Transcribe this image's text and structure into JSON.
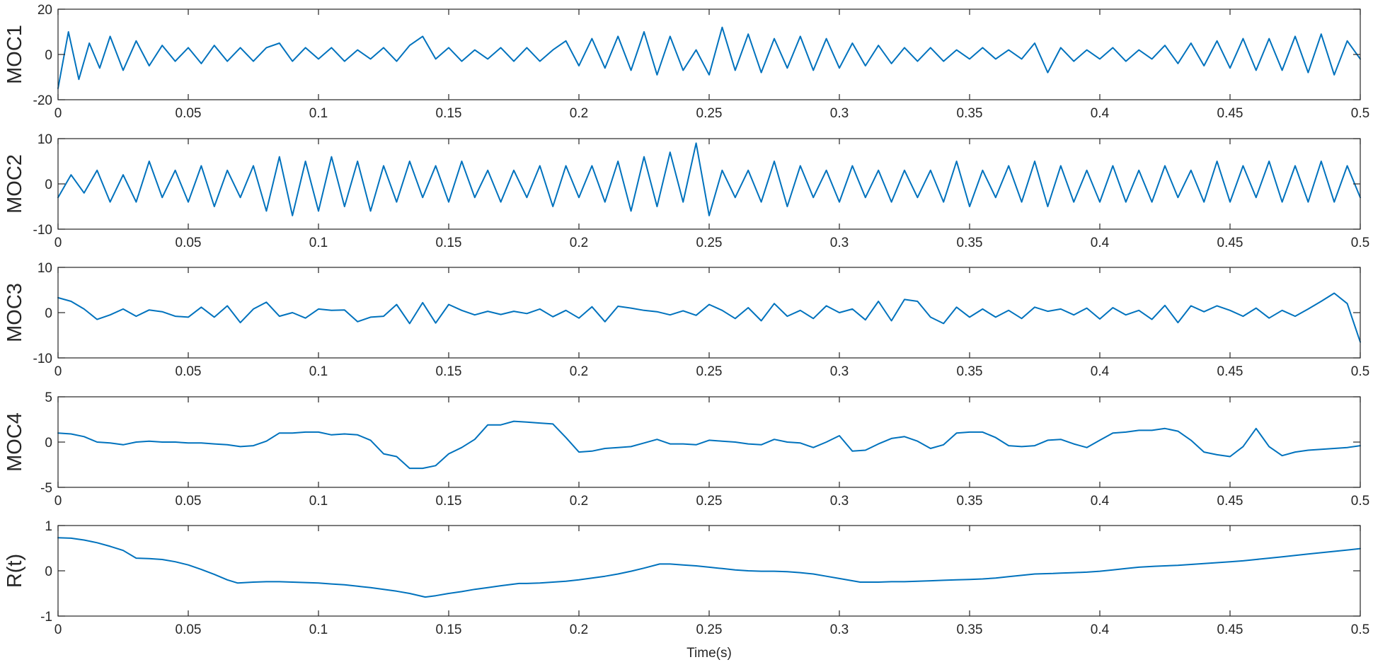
{
  "colors": {
    "line": "#0072BD",
    "axis": "#262626",
    "background": "#ffffff"
  },
  "chart_data": [
    {
      "type": "line",
      "ylabel": "MOC1",
      "xlabel": "",
      "xlim": [
        0,
        0.5
      ],
      "ylim": [
        -20,
        20
      ],
      "xticks": [
        "0",
        "0.05",
        "0.1",
        "0.15",
        "0.2",
        "0.25",
        "0.3",
        "0.35",
        "0.4",
        "0.45",
        "0.5"
      ],
      "yticks": [
        "20",
        "0",
        "-20"
      ],
      "grid": false,
      "x": [
        0,
        0.004,
        0.008,
        0.012,
        0.016,
        0.02,
        0.025,
        0.03,
        0.035,
        0.04,
        0.045,
        0.05,
        0.055,
        0.06,
        0.065,
        0.07,
        0.075,
        0.08,
        0.085,
        0.09,
        0.095,
        0.1,
        0.105,
        0.11,
        0.115,
        0.12,
        0.125,
        0.13,
        0.135,
        0.14,
        0.145,
        0.15,
        0.155,
        0.16,
        0.165,
        0.17,
        0.175,
        0.18,
        0.185,
        0.19,
        0.195,
        0.2,
        0.205,
        0.21,
        0.215,
        0.22,
        0.225,
        0.23,
        0.235,
        0.24,
        0.245,
        0.25,
        0.255,
        0.26,
        0.265,
        0.27,
        0.275,
        0.28,
        0.285,
        0.29,
        0.295,
        0.3,
        0.305,
        0.31,
        0.315,
        0.32,
        0.325,
        0.33,
        0.335,
        0.34,
        0.345,
        0.35,
        0.355,
        0.36,
        0.365,
        0.37,
        0.375,
        0.38,
        0.385,
        0.39,
        0.395,
        0.4,
        0.405,
        0.41,
        0.415,
        0.42,
        0.425,
        0.43,
        0.435,
        0.44,
        0.445,
        0.45,
        0.455,
        0.46,
        0.465,
        0.47,
        0.475,
        0.48,
        0.485,
        0.49,
        0.495,
        0.5
      ],
      "series": [
        {
          "values": [
            -15,
            10,
            -11,
            5,
            -6,
            8,
            -7,
            6,
            -5,
            4,
            -3,
            3,
            -4,
            4,
            -3,
            3,
            -3,
            3,
            5,
            -3,
            3,
            -2,
            3,
            -3,
            2,
            -2,
            3,
            -3,
            4,
            8,
            -2,
            3,
            -3,
            2,
            -2,
            3,
            -3,
            3,
            -3,
            2,
            6,
            -5,
            7,
            -6,
            8,
            -7,
            10,
            -9,
            8,
            -7,
            2,
            -9,
            12,
            -7,
            9,
            -8,
            7,
            -6,
            8,
            -7,
            7,
            -6,
            5,
            -5,
            4,
            -4,
            3,
            -3,
            3,
            -3,
            2,
            -2,
            3,
            -2,
            2,
            -2,
            5,
            -8,
            3,
            -3,
            2,
            -2,
            3,
            -3,
            2,
            -2,
            4,
            -4,
            5,
            -5,
            6,
            -6,
            7,
            -7,
            7,
            -7,
            8,
            -8,
            9,
            -9,
            6,
            -2
          ]
        }
      ]
    },
    {
      "type": "line",
      "ylabel": "MOC2",
      "xlabel": "",
      "xlim": [
        0,
        0.5
      ],
      "ylim": [
        -10,
        10
      ],
      "xticks": [
        "0",
        "0.05",
        "0.1",
        "0.15",
        "0.2",
        "0.25",
        "0.3",
        "0.35",
        "0.4",
        "0.45",
        "0.5"
      ],
      "yticks": [
        "10",
        "0",
        "-10"
      ],
      "grid": false,
      "x": [
        0,
        0.005,
        0.01,
        0.015,
        0.02,
        0.025,
        0.03,
        0.035,
        0.04,
        0.045,
        0.05,
        0.055,
        0.06,
        0.065,
        0.07,
        0.075,
        0.08,
        0.085,
        0.09,
        0.095,
        0.1,
        0.105,
        0.11,
        0.115,
        0.12,
        0.125,
        0.13,
        0.135,
        0.14,
        0.145,
        0.15,
        0.155,
        0.16,
        0.165,
        0.17,
        0.175,
        0.18,
        0.185,
        0.19,
        0.195,
        0.2,
        0.205,
        0.21,
        0.215,
        0.22,
        0.225,
        0.23,
        0.235,
        0.24,
        0.245,
        0.25,
        0.255,
        0.26,
        0.265,
        0.27,
        0.275,
        0.28,
        0.285,
        0.29,
        0.295,
        0.3,
        0.305,
        0.31,
        0.315,
        0.32,
        0.325,
        0.33,
        0.335,
        0.34,
        0.345,
        0.35,
        0.355,
        0.36,
        0.365,
        0.37,
        0.375,
        0.38,
        0.385,
        0.39,
        0.395,
        0.4,
        0.405,
        0.41,
        0.415,
        0.42,
        0.425,
        0.43,
        0.435,
        0.44,
        0.445,
        0.45,
        0.455,
        0.46,
        0.465,
        0.47,
        0.475,
        0.48,
        0.485,
        0.49,
        0.495,
        0.5
      ],
      "series": [
        {
          "values": [
            -3,
            2,
            -2,
            3,
            -4,
            2,
            -4,
            5,
            -3,
            3,
            -4,
            4,
            -5,
            3,
            -3,
            4,
            -6,
            6,
            -7,
            5,
            -6,
            6,
            -5,
            5,
            -6,
            4,
            -4,
            5,
            -3,
            4,
            -4,
            5,
            -3,
            3,
            -4,
            3,
            -3,
            4,
            -5,
            4,
            -3,
            4,
            -4,
            5,
            -6,
            6,
            -5,
            7,
            -4,
            9,
            -7,
            3,
            -3,
            3,
            -4,
            5,
            -5,
            4,
            -3,
            3,
            -4,
            4,
            -3,
            3,
            -4,
            3,
            -3,
            3,
            -4,
            5,
            -5,
            3,
            -3,
            4,
            -4,
            5,
            -5,
            4,
            -4,
            3,
            -4,
            4,
            -4,
            3,
            -4,
            4,
            -3,
            3,
            -4,
            5,
            -4,
            4,
            -3,
            5,
            -4,
            4,
            -4,
            5,
            -4,
            4,
            -3
          ]
        }
      ]
    },
    {
      "type": "line",
      "ylabel": "MOC3",
      "xlabel": "",
      "xlim": [
        0,
        0.5
      ],
      "ylim": [
        -10,
        10
      ],
      "xticks": [
        "0",
        "0.05",
        "0.1",
        "0.15",
        "0.2",
        "0.25",
        "0.3",
        "0.35",
        "0.4",
        "0.45",
        "0.5"
      ],
      "yticks": [
        "10",
        "0",
        "-10"
      ],
      "grid": false,
      "x": [
        0,
        0.005,
        0.01,
        0.015,
        0.02,
        0.025,
        0.03,
        0.035,
        0.04,
        0.045,
        0.05,
        0.055,
        0.06,
        0.065,
        0.07,
        0.075,
        0.08,
        0.085,
        0.09,
        0.095,
        0.1,
        0.105,
        0.11,
        0.115,
        0.12,
        0.125,
        0.13,
        0.135,
        0.14,
        0.145,
        0.15,
        0.155,
        0.16,
        0.165,
        0.17,
        0.175,
        0.18,
        0.185,
        0.19,
        0.195,
        0.2,
        0.205,
        0.21,
        0.215,
        0.22,
        0.225,
        0.23,
        0.235,
        0.24,
        0.245,
        0.25,
        0.255,
        0.26,
        0.265,
        0.27,
        0.275,
        0.28,
        0.285,
        0.29,
        0.295,
        0.3,
        0.305,
        0.31,
        0.315,
        0.32,
        0.325,
        0.33,
        0.335,
        0.34,
        0.345,
        0.35,
        0.355,
        0.36,
        0.365,
        0.37,
        0.375,
        0.38,
        0.385,
        0.39,
        0.395,
        0.4,
        0.405,
        0.41,
        0.415,
        0.42,
        0.425,
        0.43,
        0.435,
        0.44,
        0.445,
        0.45,
        0.455,
        0.46,
        0.465,
        0.47,
        0.475,
        0.48,
        0.485,
        0.49,
        0.495,
        0.5
      ],
      "series": [
        {
          "values": [
            3.3,
            2.5,
            0.8,
            -1.5,
            -0.5,
            0.8,
            -0.8,
            0.6,
            0.2,
            -0.8,
            -1,
            1.2,
            -1,
            1.5,
            -2.2,
            0.8,
            2.3,
            -0.8,
            0,
            -1.2,
            0.8,
            0.5,
            0.6,
            -2,
            -1,
            -0.8,
            1.8,
            -2.4,
            2.2,
            -2.3,
            1.8,
            0.5,
            -0.5,
            0.3,
            -0.4,
            0.3,
            -0.2,
            0.8,
            -0.9,
            0.5,
            -1.2,
            1.3,
            -2,
            1.4,
            1,
            0.5,
            0.2,
            -0.5,
            0.4,
            -0.6,
            1.8,
            0.5,
            -1.3,
            1.1,
            -1.8,
            2,
            -0.8,
            0.5,
            -1.3,
            1.5,
            0,
            0.8,
            -1.6,
            2.5,
            -1.8,
            2.9,
            2.5,
            -1,
            -2.4,
            1.2,
            -1,
            0.8,
            -1,
            0.5,
            -1.3,
            1.2,
            0.3,
            0.8,
            -0.5,
            1,
            -1.4,
            1.1,
            -0.5,
            0.5,
            -1.5,
            1.6,
            -2.2,
            1.5,
            0.2,
            1.5,
            0.5,
            -0.8,
            1,
            -1.2,
            0.5,
            -0.8,
            0.8,
            2.5,
            4.3,
            2,
            -6.5
          ]
        }
      ]
    },
    {
      "type": "line",
      "ylabel": "MOC4",
      "xlabel": "",
      "xlim": [
        0,
        0.5
      ],
      "ylim": [
        -5,
        5
      ],
      "xticks": [
        "0",
        "0.05",
        "0.1",
        "0.15",
        "0.2",
        "0.25",
        "0.3",
        "0.35",
        "0.4",
        "0.45",
        "0.5"
      ],
      "yticks": [
        "5",
        "0",
        "-5"
      ],
      "grid": false,
      "x": [
        0,
        0.005,
        0.01,
        0.015,
        0.02,
        0.025,
        0.03,
        0.035,
        0.04,
        0.045,
        0.05,
        0.055,
        0.06,
        0.065,
        0.07,
        0.075,
        0.08,
        0.085,
        0.09,
        0.095,
        0.1,
        0.105,
        0.11,
        0.115,
        0.12,
        0.125,
        0.13,
        0.135,
        0.14,
        0.145,
        0.15,
        0.155,
        0.16,
        0.165,
        0.17,
        0.175,
        0.18,
        0.185,
        0.19,
        0.195,
        0.2,
        0.205,
        0.21,
        0.215,
        0.22,
        0.225,
        0.23,
        0.235,
        0.24,
        0.245,
        0.25,
        0.255,
        0.26,
        0.265,
        0.27,
        0.275,
        0.28,
        0.285,
        0.29,
        0.295,
        0.3,
        0.305,
        0.31,
        0.315,
        0.32,
        0.325,
        0.33,
        0.335,
        0.34,
        0.345,
        0.35,
        0.355,
        0.36,
        0.365,
        0.37,
        0.375,
        0.38,
        0.385,
        0.39,
        0.395,
        0.4,
        0.405,
        0.41,
        0.415,
        0.42,
        0.425,
        0.43,
        0.435,
        0.44,
        0.445,
        0.45,
        0.455,
        0.46,
        0.465,
        0.47,
        0.475,
        0.48,
        0.485,
        0.49,
        0.495,
        0.5
      ],
      "series": [
        {
          "values": [
            1,
            0.9,
            0.6,
            0,
            -0.1,
            -0.3,
            0,
            0.1,
            0,
            0,
            -0.1,
            -0.1,
            -0.2,
            -0.3,
            -0.5,
            -0.4,
            0.1,
            1,
            1,
            1.1,
            1.1,
            0.8,
            0.9,
            0.8,
            0.2,
            -1.3,
            -1.6,
            -2.9,
            -2.9,
            -2.6,
            -1.3,
            -0.6,
            0.3,
            1.9,
            1.9,
            2.3,
            2.2,
            2.1,
            2,
            0.5,
            -1.1,
            -1,
            -0.7,
            -0.6,
            -0.5,
            -0.1,
            0.3,
            -0.2,
            -0.2,
            -0.3,
            0.2,
            0.1,
            0,
            -0.2,
            -0.3,
            0.3,
            0,
            -0.1,
            -0.6,
            0,
            0.7,
            -1,
            -0.9,
            -0.2,
            0.4,
            0.6,
            0.1,
            -0.7,
            -0.3,
            1,
            1.1,
            1.1,
            0.5,
            -0.4,
            -0.5,
            -0.4,
            0.2,
            0.3,
            -0.2,
            -0.6,
            0.2,
            1,
            1.1,
            1.3,
            1.3,
            1.5,
            1.2,
            0.2,
            -1.1,
            -1.4,
            -1.6,
            -0.5,
            1.5,
            -0.5,
            -1.5,
            -1.1,
            -0.9,
            -0.8,
            -0.7,
            -0.6,
            -0.4
          ]
        }
      ]
    },
    {
      "type": "line",
      "ylabel": "R(t)",
      "xlabel": "Time(s)",
      "xlim": [
        0,
        0.5
      ],
      "ylim": [
        -1,
        1
      ],
      "xticks": [
        "0",
        "0.05",
        "0.1",
        "0.15",
        "0.2",
        "0.25",
        "0.3",
        "0.35",
        "0.4",
        "0.45",
        "0.5"
      ],
      "yticks": [
        "1",
        "0",
        "-1"
      ],
      "grid": false,
      "x": [
        0,
        0.005,
        0.01,
        0.015,
        0.02,
        0.025,
        0.03,
        0.035,
        0.04,
        0.045,
        0.05,
        0.055,
        0.06,
        0.065,
        0.069,
        0.075,
        0.08,
        0.085,
        0.09,
        0.095,
        0.1,
        0.105,
        0.11,
        0.115,
        0.12,
        0.125,
        0.13,
        0.135,
        0.141,
        0.145,
        0.15,
        0.155,
        0.16,
        0.165,
        0.17,
        0.177,
        0.18,
        0.185,
        0.19,
        0.195,
        0.2,
        0.205,
        0.21,
        0.215,
        0.22,
        0.225,
        0.231,
        0.235,
        0.24,
        0.245,
        0.25,
        0.255,
        0.26,
        0.265,
        0.27,
        0.275,
        0.28,
        0.285,
        0.29,
        0.295,
        0.3,
        0.308,
        0.31,
        0.315,
        0.32,
        0.325,
        0.33,
        0.335,
        0.34,
        0.345,
        0.35,
        0.355,
        0.36,
        0.365,
        0.37,
        0.375,
        0.382,
        0.385,
        0.39,
        0.395,
        0.4,
        0.405,
        0.41,
        0.415,
        0.421,
        0.425,
        0.43,
        0.435,
        0.44,
        0.445,
        0.45,
        0.455,
        0.46,
        0.465,
        0.47,
        0.475,
        0.48,
        0.485,
        0.49,
        0.495,
        0.5
      ],
      "series": [
        {
          "values": [
            0.73,
            0.72,
            0.68,
            0.62,
            0.54,
            0.45,
            0.28,
            0.27,
            0.25,
            0.2,
            0.13,
            0.03,
            -0.08,
            -0.2,
            -0.27,
            -0.25,
            -0.24,
            -0.24,
            -0.25,
            -0.26,
            -0.27,
            -0.29,
            -0.31,
            -0.34,
            -0.37,
            -0.41,
            -0.45,
            -0.5,
            -0.58,
            -0.55,
            -0.5,
            -0.46,
            -0.41,
            -0.37,
            -0.33,
            -0.28,
            -0.28,
            -0.27,
            -0.25,
            -0.23,
            -0.2,
            -0.16,
            -0.12,
            -0.07,
            -0.01,
            0.06,
            0.15,
            0.15,
            0.13,
            0.11,
            0.08,
            0.05,
            0.02,
            0,
            -0.01,
            -0.01,
            -0.02,
            -0.04,
            -0.07,
            -0.12,
            -0.17,
            -0.25,
            -0.25,
            -0.25,
            -0.24,
            -0.24,
            -0.23,
            -0.22,
            -0.21,
            -0.2,
            -0.19,
            -0.18,
            -0.16,
            -0.13,
            -0.1,
            -0.07,
            -0.06,
            -0.05,
            -0.04,
            -0.03,
            -0.01,
            0.02,
            0.05,
            0.08,
            0.1,
            0.11,
            0.12,
            0.14,
            0.16,
            0.18,
            0.2,
            0.22,
            0.25,
            0.28,
            0.31,
            0.34,
            0.37,
            0.4,
            0.43,
            0.46,
            0.49
          ]
        }
      ]
    }
  ]
}
